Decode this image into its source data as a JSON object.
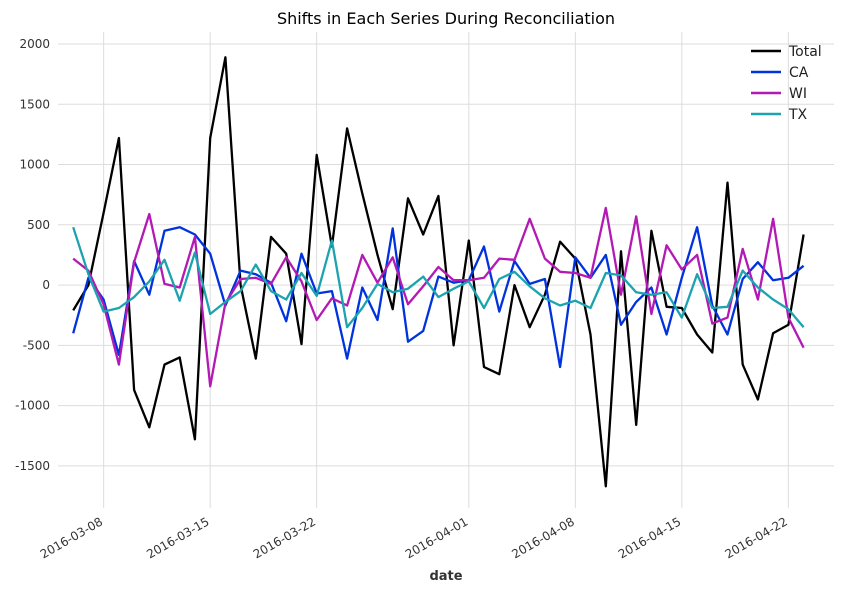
{
  "chart_data": {
    "type": "line",
    "title": "Shifts in Each Series During Reconciliation",
    "xlabel": "date",
    "ylabel": "",
    "x_start": "2016-03-06",
    "x_end": "2016-04-24",
    "xlim": [
      "2016-03-05",
      "2016-04-25"
    ],
    "ylim": [
      -1850,
      2100
    ],
    "yticks": [
      -1500,
      -1000,
      -500,
      0,
      500,
      1000,
      1500,
      2000
    ],
    "xticks": [
      "2016-03-08",
      "2016-03-15",
      "2016-03-22",
      "2016-04-01",
      "2016-04-08",
      "2016-04-15",
      "2016-04-22"
    ],
    "grid": true,
    "legend_position": "top-right",
    "series": [
      {
        "name": "Total",
        "color": "#000000",
        "values": [
          -210,
          0,
          600,
          1220,
          -870,
          -1180,
          -660,
          -600,
          -1280,
          1220,
          1890,
          0,
          -610,
          400,
          260,
          -490,
          1080,
          320,
          1300,
          760,
          250,
          -200,
          720,
          420,
          740,
          -500,
          370,
          -680,
          -740,
          0,
          -350,
          -80,
          360,
          220,
          -410,
          -1670,
          280,
          -1160,
          450,
          -180,
          -190,
          -410,
          -560,
          850,
          -660,
          -950,
          -400,
          -330,
          420
        ]
      },
      {
        "name": "CA",
        "color": "#0033dd",
        "values": [
          -400,
          60,
          -120,
          -580,
          200,
          -80,
          450,
          480,
          420,
          260,
          -170,
          120,
          90,
          20,
          -300,
          260,
          -70,
          -50,
          -610,
          -20,
          -290,
          470,
          -470,
          -380,
          70,
          20,
          40,
          320,
          -220,
          200,
          10,
          50,
          -680,
          230,
          60,
          250,
          -330,
          -140,
          -20,
          -410,
          60,
          480,
          -170,
          -410,
          50,
          190,
          40,
          60,
          160
        ]
      },
      {
        "name": "WI",
        "color": "#b319b3",
        "values": [
          220,
          120,
          -160,
          -660,
          190,
          590,
          10,
          -20,
          400,
          -840,
          -150,
          50,
          60,
          10,
          230,
          30,
          -290,
          -110,
          -170,
          250,
          20,
          230,
          -160,
          -10,
          150,
          40,
          40,
          60,
          220,
          210,
          550,
          220,
          110,
          100,
          60,
          640,
          -80,
          570,
          -240,
          330,
          130,
          250,
          -320,
          -270,
          300,
          -120,
          550,
          -270,
          -520
        ]
      },
      {
        "name": "TX",
        "color": "#1ba3b0",
        "values": [
          480,
          90,
          -220,
          -190,
          -100,
          30,
          210,
          -130,
          270,
          -240,
          -140,
          -50,
          170,
          -50,
          -120,
          100,
          -90,
          370,
          -350,
          -190,
          10,
          -60,
          -30,
          70,
          -100,
          -30,
          30,
          -190,
          50,
          110,
          -10,
          -110,
          -170,
          -130,
          -190,
          100,
          80,
          -60,
          -80,
          -60,
          -270,
          90,
          -190,
          -180,
          120,
          -20,
          -120,
          -200,
          -350
        ]
      }
    ]
  }
}
